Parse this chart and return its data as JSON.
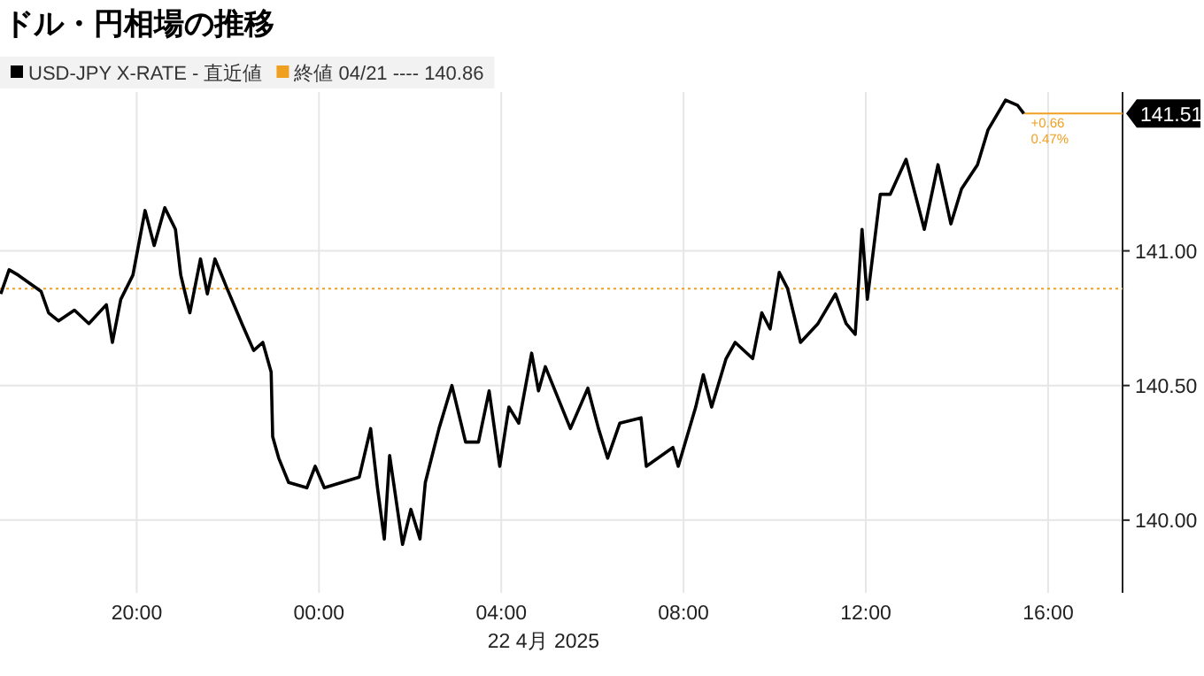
{
  "chart_data": {
    "type": "line",
    "title": "ドル・円相場の推移",
    "xlabel": "22 4月 2025",
    "x": [
      "2025-04-21T17:01",
      "2025-04-21T17:12",
      "2025-04-21T17:24",
      "2025-04-21T17:54",
      "2025-04-21T18:04",
      "2025-04-21T18:17",
      "2025-04-21T18:38",
      "2025-04-21T18:57",
      "2025-04-21T19:20",
      "2025-04-21T19:28",
      "2025-04-21T19:39",
      "2025-04-21T19:55",
      "2025-04-21T20:11",
      "2025-04-21T20:23",
      "2025-04-21T20:37",
      "2025-04-21T20:51",
      "2025-04-21T20:58",
      "2025-04-21T21:10",
      "2025-04-21T21:24",
      "2025-04-21T21:33",
      "2025-04-21T21:43",
      "2025-04-21T21:59",
      "2025-04-21T22:20",
      "2025-04-21T22:34",
      "2025-04-21T22:46",
      "2025-04-21T22:57",
      "2025-04-21T22:59",
      "2025-04-21T23:07",
      "2025-04-21T23:20",
      "2025-04-21T23:44",
      "2025-04-21T23:55",
      "2025-04-22T00:07",
      "2025-04-22T00:30",
      "2025-04-22T00:53",
      "2025-04-22T01:08",
      "2025-04-22T01:17",
      "2025-04-22T01:26",
      "2025-04-22T01:33",
      "2025-04-22T01:50",
      "2025-04-22T02:01",
      "2025-04-22T02:13",
      "2025-04-22T02:20",
      "2025-04-22T02:38",
      "2025-04-22T02:55",
      "2025-04-22T03:13",
      "2025-04-22T03:30",
      "2025-04-22T03:44",
      "2025-04-22T03:58",
      "2025-04-22T04:10",
      "2025-04-22T04:23",
      "2025-04-22T04:40",
      "2025-04-22T04:49",
      "2025-04-22T04:58",
      "2025-04-22T05:31",
      "2025-04-22T05:54",
      "2025-04-22T06:08",
      "2025-04-22T06:20",
      "2025-04-22T06:36",
      "2025-04-22T07:04",
      "2025-04-22T07:11",
      "2025-04-22T07:46",
      "2025-04-22T07:53",
      "2025-04-22T08:16",
      "2025-04-22T08:26",
      "2025-04-22T08:37",
      "2025-04-22T08:56",
      "2025-04-22T09:08",
      "2025-04-22T09:31",
      "2025-04-22T09:43",
      "2025-04-22T09:54",
      "2025-04-22T10:06",
      "2025-04-22T10:17",
      "2025-04-22T10:34",
      "2025-04-22T10:57",
      "2025-04-22T11:20",
      "2025-04-22T11:34",
      "2025-04-22T11:46",
      "2025-04-22T11:55",
      "2025-04-22T12:02",
      "2025-04-22T12:19",
      "2025-04-22T12:32",
      "2025-04-22T12:53",
      "2025-04-22T13:05",
      "2025-04-22T13:17",
      "2025-04-22T13:35",
      "2025-04-22T13:52",
      "2025-04-22T14:06",
      "2025-04-22T14:27",
      "2025-04-22T14:41",
      "2025-04-22T15:04",
      "2025-04-22T15:20",
      "2025-04-22T15:28"
    ],
    "series": [
      {
        "name": "USD-JPY X-RATE - 直近値",
        "color": "#000000",
        "values": [
          140.84,
          140.93,
          140.91,
          140.85,
          140.77,
          140.74,
          140.78,
          140.73,
          140.8,
          140.66,
          140.82,
          140.91,
          141.15,
          141.02,
          141.16,
          141.08,
          140.91,
          140.77,
          140.97,
          140.84,
          140.97,
          140.86,
          140.72,
          140.63,
          140.66,
          140.55,
          140.31,
          140.23,
          140.14,
          140.12,
          140.2,
          140.12,
          140.14,
          140.16,
          140.34,
          140.12,
          139.93,
          140.24,
          139.91,
          140.04,
          139.93,
          140.14,
          140.34,
          140.5,
          140.29,
          140.29,
          140.48,
          140.2,
          140.42,
          140.36,
          140.62,
          140.48,
          140.57,
          140.34,
          140.49,
          140.34,
          140.23,
          140.36,
          140.38,
          140.2,
          140.27,
          140.2,
          140.42,
          140.54,
          140.42,
          140.6,
          140.66,
          140.6,
          140.77,
          140.71,
          140.92,
          140.86,
          140.66,
          140.73,
          140.84,
          140.73,
          140.69,
          141.08,
          140.82,
          141.21,
          141.21,
          141.34,
          141.21,
          141.08,
          141.32,
          141.1,
          141.23,
          141.32,
          141.45,
          141.56,
          141.54,
          141.51
        ]
      }
    ],
    "xlim": [
      "2025-04-21T17:00",
      "2025-04-22T17:38"
    ],
    "ylim": [
      139.73,
      141.59
    ],
    "xticks": [
      {
        "value": "2025-04-21T20:00",
        "label": "20:00"
      },
      {
        "value": "2025-04-22T00:00",
        "label": "00:00"
      },
      {
        "value": "2025-04-22T04:00",
        "label": "04:00"
      },
      {
        "value": "2025-04-22T08:00",
        "label": "08:00"
      },
      {
        "value": "2025-04-22T12:00",
        "label": "12:00"
      },
      {
        "value": "2025-04-22T16:00",
        "label": "16:00"
      }
    ],
    "yticks": [
      {
        "value": 140,
        "label": "140.00"
      },
      {
        "value": 140.5,
        "label": "140.50"
      },
      {
        "value": 141,
        "label": "141.00"
      }
    ],
    "ref_lines": [
      {
        "axis": "y",
        "value": 140.86,
        "label": "終値 04/21 ---- 140.86",
        "color": "#f0a020",
        "line_style": "dotted"
      },
      {
        "axis": "y",
        "value": 141.51,
        "label": "141.51",
        "color": "#f0a020",
        "line_style": "solid"
      }
    ],
    "annotations": [
      "+0.66",
      "0.47%"
    ],
    "grid": true,
    "legend": "top left",
    "line_style": "solid"
  }
}
